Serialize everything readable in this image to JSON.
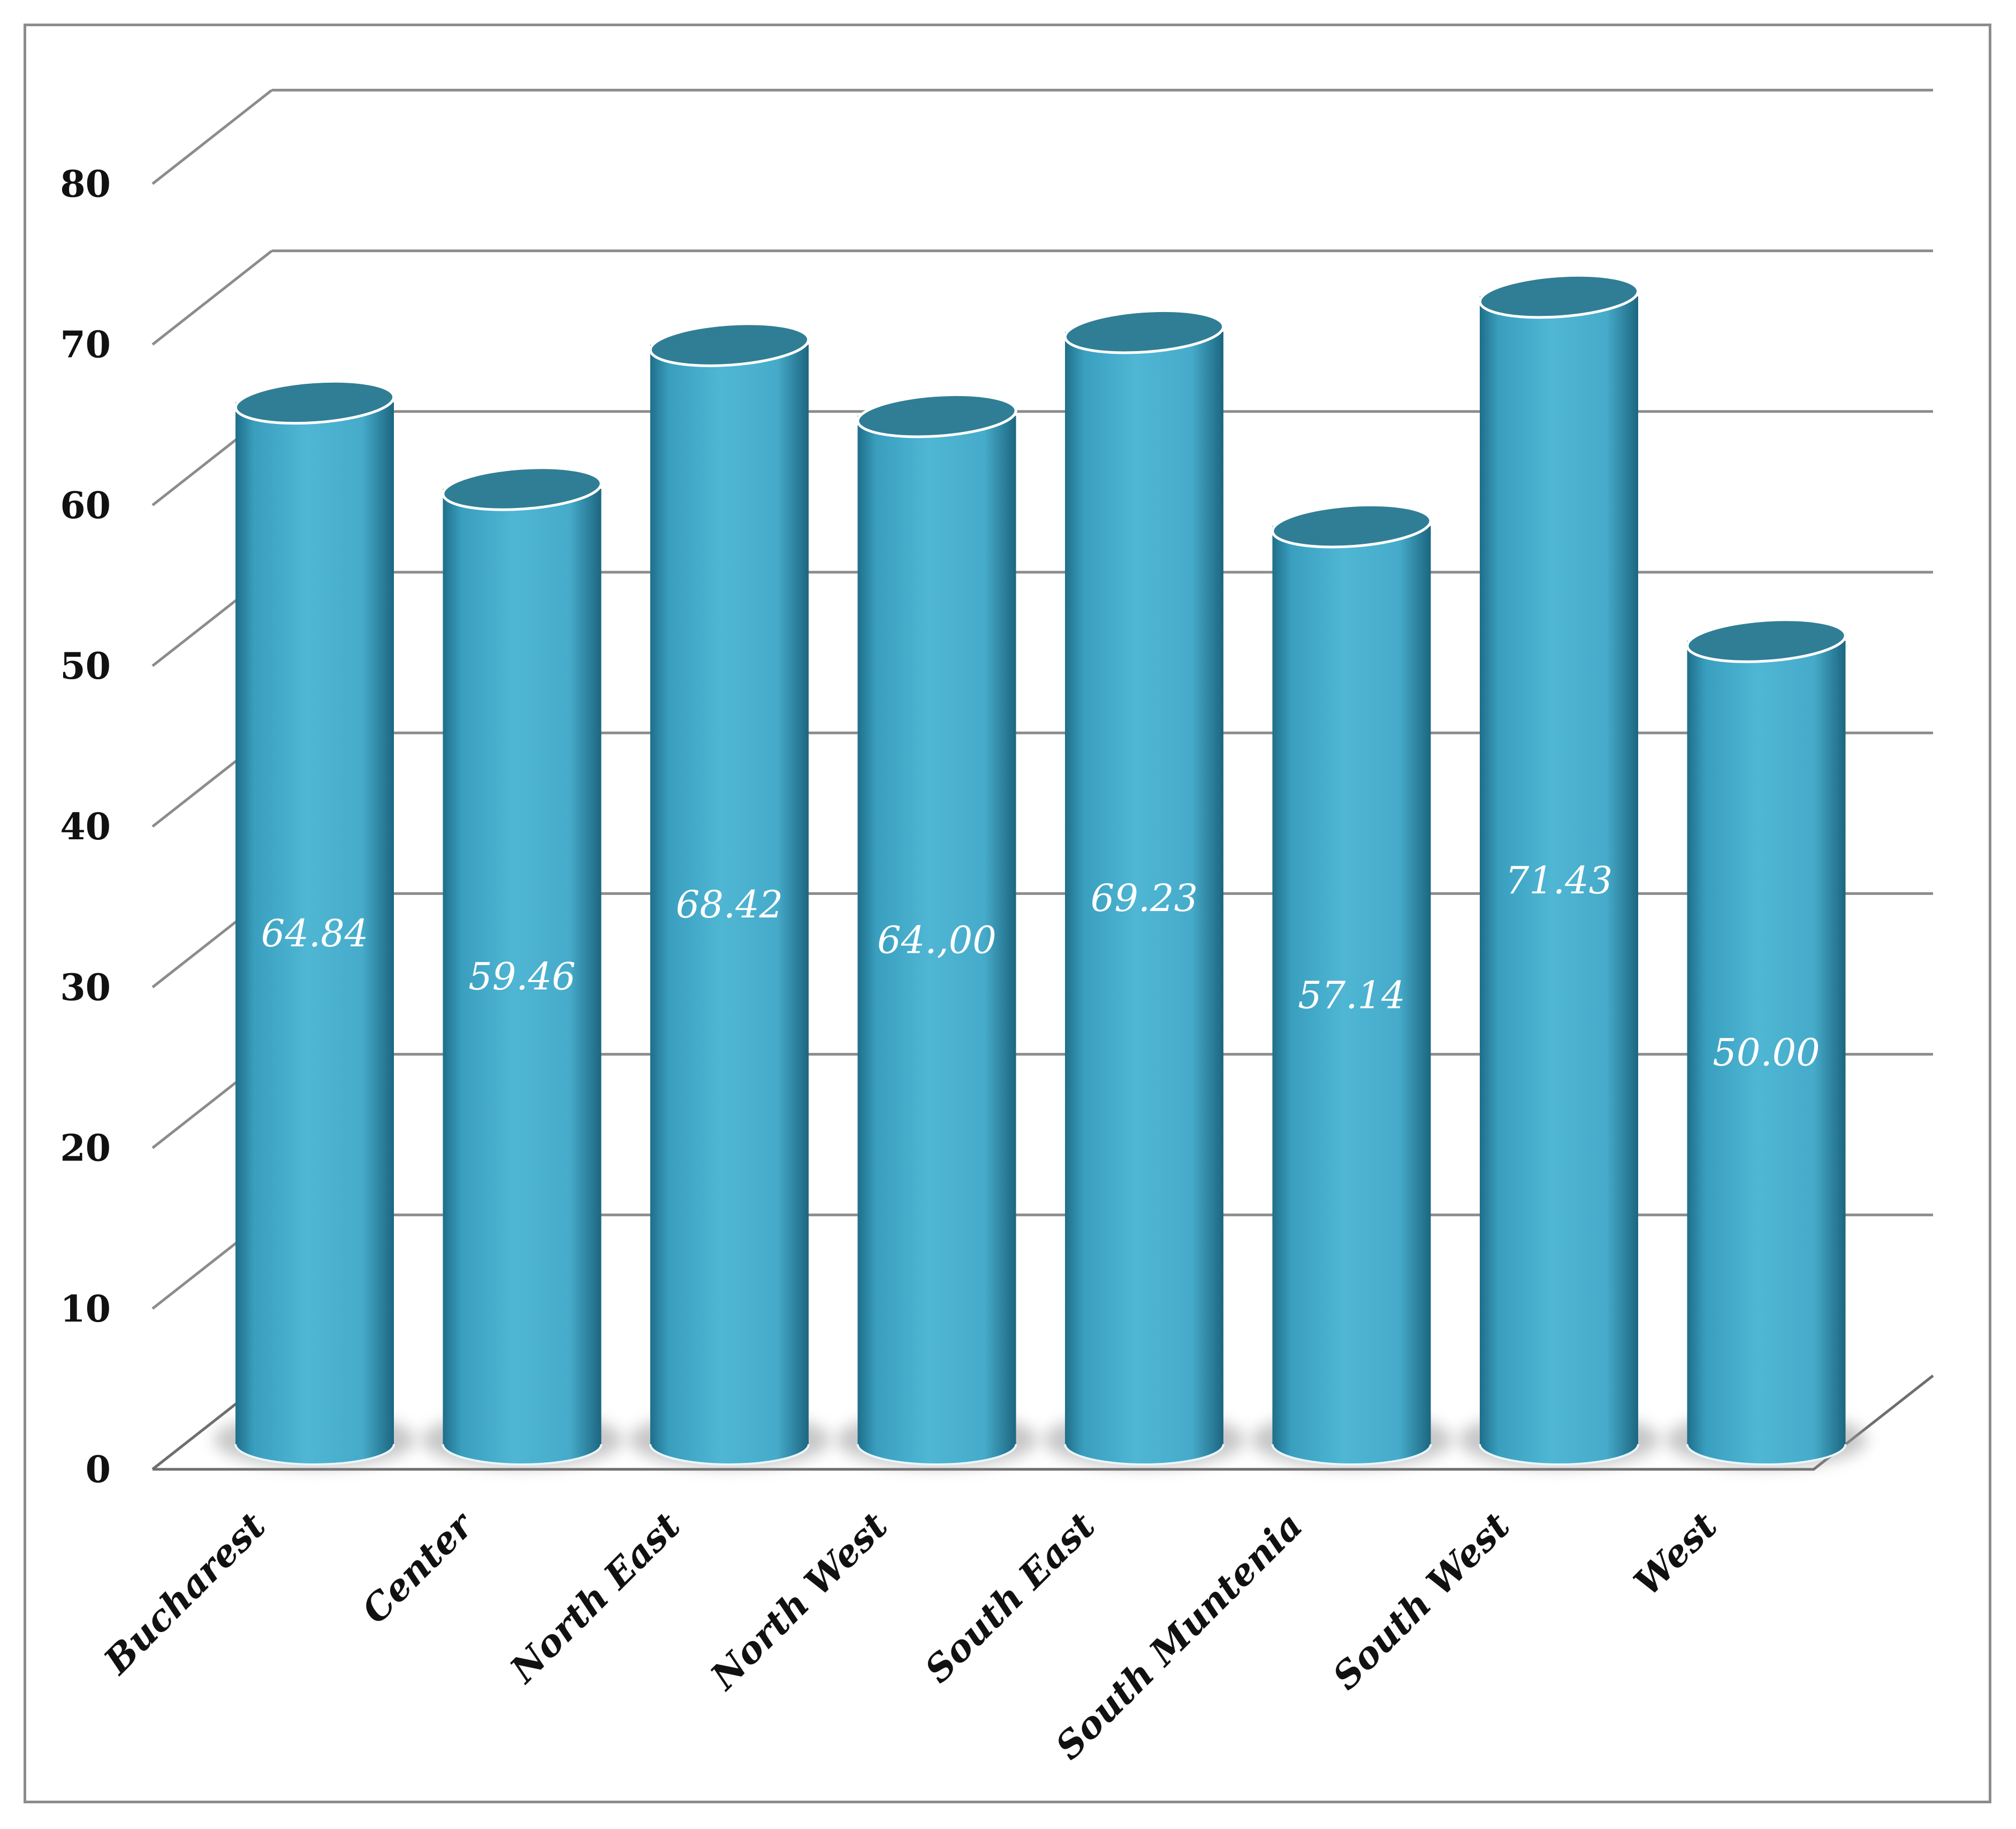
{
  "chart_data": {
    "type": "bar",
    "style": "3d-cylinder",
    "categories": [
      "Bucharest",
      "Center",
      "North East",
      "North West",
      "South East",
      "South Muntenia",
      "South West",
      "West"
    ],
    "values": [
      64.84,
      59.46,
      68.42,
      64.0,
      69.23,
      57.14,
      71.43,
      50.0
    ],
    "data_labels": [
      "64.84",
      "59.46",
      "68.42",
      "64.,00",
      "69.23",
      "57.14",
      "71.43",
      "50.00"
    ],
    "y_ticks": [
      "0",
      "10",
      "20",
      "30",
      "40",
      "50",
      "60",
      "70",
      "80"
    ],
    "ylim": [
      0,
      80
    ],
    "grid": true,
    "legend": "none",
    "colors": {
      "bar_front": "#4bb1d0",
      "bar_edge": "#1f6f8a",
      "bar_top": "#2f7e95",
      "grid": "#8c8c8c",
      "frame": "#8c8c8c"
    }
  }
}
